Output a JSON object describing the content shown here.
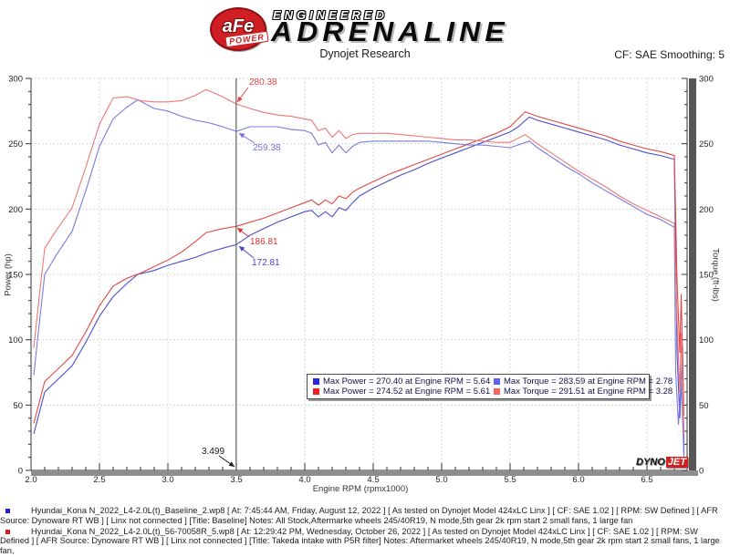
{
  "header": {
    "brand": {
      "badge_text": "aFe",
      "badge_sub": "POWER",
      "line1": "ENGINEERED",
      "line2": "ADRENALINE"
    },
    "title": "Dynojet Research",
    "smoothing": "CF: SAE Smoothing: 5"
  },
  "watermark": {
    "dyno": "DYNO",
    "jet": "JET"
  },
  "chart_data": {
    "type": "line",
    "xlabel": "Engine RPM (rpmx1000)",
    "ylabel_left": "Power (hp)",
    "ylabel_right": "Torque (ft-lbs)",
    "xlim": [
      2.0,
      6.79
    ],
    "ylim_left": [
      0,
      300
    ],
    "ylim_right": [
      0,
      300
    ],
    "grid": "dashed",
    "x_tick_labels": [
      "2.0",
      "2.5",
      "3.0",
      "3.5",
      "4.0",
      "4.5",
      "5.0",
      "5.5",
      "6.0",
      "6.5"
    ],
    "y_tick_labels": [
      "0",
      "50",
      "100",
      "150",
      "200",
      "250",
      "300"
    ],
    "cursor": {
      "rpm": 3.499,
      "label": "3.499"
    },
    "legend": {
      "entries": [
        {
          "color": "#2828e0",
          "label": "Max Power = 270.40 at Engine RPM = 5.64"
        },
        {
          "color": "#6060f0",
          "label": "Max Torque = 283.59 at Engine RPM = 2.78"
        },
        {
          "color": "#ee2222",
          "label": "Max Power = 274.52 at Engine RPM = 5.61"
        },
        {
          "color": "#f66262",
          "label": "Max Torque = 291.51 at Engine RPM = 3.28"
        }
      ]
    },
    "annotations": [
      {
        "text": "280.38",
        "color": "#e04545",
        "label_x": 273,
        "label_y": 85,
        "arrow": [
          272,
          96,
          260,
          112
        ]
      },
      {
        "text": "259.38",
        "color": "#7373e0",
        "label_x": 277,
        "label_y": 157,
        "arrow": [
          279,
          157,
          262,
          146
        ]
      },
      {
        "text": "186.81",
        "color": "#d83535",
        "label_x": 274,
        "label_y": 260,
        "arrow": [
          273,
          260,
          260,
          250
        ]
      },
      {
        "text": "172.81",
        "color": "#4545d0",
        "label_x": 276,
        "label_y": 283,
        "arrow": [
          278,
          283,
          262,
          270
        ]
      },
      {
        "text": "3.499",
        "color": "#1a1a1a",
        "label_x": 221,
        "label_y": 490,
        "arrow": [
          240,
          500,
          257,
          512
        ]
      }
    ],
    "series": [
      {
        "name": "power_run1_baseline",
        "unit": "hp",
        "color": "#4d4dcc",
        "points": [
          [
            2.02,
            28
          ],
          [
            2.06,
            44
          ],
          [
            2.1,
            60
          ],
          [
            2.18,
            68
          ],
          [
            2.3,
            80
          ],
          [
            2.4,
            98
          ],
          [
            2.5,
            118
          ],
          [
            2.6,
            133
          ],
          [
            2.7,
            143
          ],
          [
            2.78,
            150
          ],
          [
            2.9,
            153
          ],
          [
            3.0,
            157
          ],
          [
            3.1,
            160
          ],
          [
            3.2,
            163
          ],
          [
            3.3,
            167
          ],
          [
            3.4,
            170
          ],
          [
            3.5,
            172.8
          ],
          [
            3.6,
            180
          ],
          [
            3.7,
            185
          ],
          [
            3.8,
            190
          ],
          [
            3.9,
            194
          ],
          [
            4.0,
            198
          ],
          [
            4.05,
            199
          ],
          [
            4.1,
            194
          ],
          [
            4.15,
            198
          ],
          [
            4.2,
            194
          ],
          [
            4.25,
            201
          ],
          [
            4.3,
            199
          ],
          [
            4.35,
            205
          ],
          [
            4.4,
            210
          ],
          [
            4.5,
            216
          ],
          [
            4.6,
            221
          ],
          [
            4.7,
            226
          ],
          [
            4.8,
            230
          ],
          [
            4.9,
            235
          ],
          [
            5.0,
            239
          ],
          [
            5.1,
            243
          ],
          [
            5.2,
            247
          ],
          [
            5.3,
            251
          ],
          [
            5.4,
            255
          ],
          [
            5.5,
            259
          ],
          [
            5.56,
            263
          ],
          [
            5.64,
            270.4
          ],
          [
            5.7,
            268
          ],
          [
            5.8,
            265
          ],
          [
            5.9,
            262
          ],
          [
            6.0,
            259
          ],
          [
            6.1,
            256
          ],
          [
            6.2,
            253
          ],
          [
            6.3,
            249
          ],
          [
            6.4,
            246
          ],
          [
            6.5,
            243
          ],
          [
            6.6,
            241
          ],
          [
            6.7,
            238
          ],
          [
            6.72,
            90
          ],
          [
            6.74,
            40
          ],
          [
            6.76,
            95
          ],
          [
            6.77,
            12
          ]
        ]
      },
      {
        "name": "power_run2_intake",
        "unit": "hp",
        "color": "#e04848",
        "points": [
          [
            2.02,
            36
          ],
          [
            2.06,
            52
          ],
          [
            2.1,
            68
          ],
          [
            2.18,
            76
          ],
          [
            2.3,
            88
          ],
          [
            2.4,
            106
          ],
          [
            2.5,
            126
          ],
          [
            2.6,
            141
          ],
          [
            2.7,
            147
          ],
          [
            2.8,
            151
          ],
          [
            2.9,
            156
          ],
          [
            3.0,
            161
          ],
          [
            3.1,
            167
          ],
          [
            3.2,
            175
          ],
          [
            3.28,
            182
          ],
          [
            3.4,
            185
          ],
          [
            3.5,
            186.8
          ],
          [
            3.6,
            190
          ],
          [
            3.7,
            193
          ],
          [
            3.8,
            197
          ],
          [
            3.9,
            201
          ],
          [
            4.0,
            205
          ],
          [
            4.05,
            207
          ],
          [
            4.1,
            203
          ],
          [
            4.15,
            207
          ],
          [
            4.2,
            204
          ],
          [
            4.25,
            210
          ],
          [
            4.3,
            208
          ],
          [
            4.35,
            213
          ],
          [
            4.4,
            216
          ],
          [
            4.5,
            221
          ],
          [
            4.6,
            226
          ],
          [
            4.7,
            230
          ],
          [
            4.8,
            234
          ],
          [
            4.9,
            238
          ],
          [
            5.0,
            242
          ],
          [
            5.1,
            246
          ],
          [
            5.2,
            250
          ],
          [
            5.3,
            254
          ],
          [
            5.4,
            258
          ],
          [
            5.5,
            263
          ],
          [
            5.61,
            274.5
          ],
          [
            5.7,
            271
          ],
          [
            5.8,
            268
          ],
          [
            5.9,
            265
          ],
          [
            6.0,
            262
          ],
          [
            6.1,
            259
          ],
          [
            6.2,
            256
          ],
          [
            6.3,
            252
          ],
          [
            6.4,
            249
          ],
          [
            6.5,
            246
          ],
          [
            6.6,
            244
          ],
          [
            6.7,
            241
          ],
          [
            6.72,
            145
          ],
          [
            6.74,
            90
          ],
          [
            6.75,
            135
          ],
          [
            6.77,
            42
          ]
        ]
      },
      {
        "name": "torque_run1_baseline",
        "unit": "ft-lbs",
        "color": "#7b7bdd",
        "points": [
          [
            2.02,
            72.8
          ],
          [
            2.06,
            112
          ],
          [
            2.1,
            150
          ],
          [
            2.18,
            164
          ],
          [
            2.3,
            183
          ],
          [
            2.4,
            214
          ],
          [
            2.5,
            248
          ],
          [
            2.6,
            269
          ],
          [
            2.7,
            278
          ],
          [
            2.78,
            283.6
          ],
          [
            2.9,
            277
          ],
          [
            3.0,
            275
          ],
          [
            3.1,
            271
          ],
          [
            3.2,
            268
          ],
          [
            3.3,
            266
          ],
          [
            3.4,
            263
          ],
          [
            3.5,
            259.4
          ],
          [
            3.6,
            263
          ],
          [
            3.7,
            263
          ],
          [
            3.8,
            263
          ],
          [
            3.9,
            261
          ],
          [
            4.0,
            260
          ],
          [
            4.05,
            258
          ],
          [
            4.1,
            249
          ],
          [
            4.15,
            251
          ],
          [
            4.2,
            243
          ],
          [
            4.25,
            249
          ],
          [
            4.3,
            243
          ],
          [
            4.35,
            248
          ],
          [
            4.4,
            251
          ],
          [
            4.5,
            252
          ],
          [
            4.6,
            252
          ],
          [
            4.7,
            252
          ],
          [
            4.8,
            252
          ],
          [
            4.9,
            252
          ],
          [
            5.0,
            251
          ],
          [
            5.1,
            250
          ],
          [
            5.2,
            249
          ],
          [
            5.3,
            249
          ],
          [
            5.4,
            248
          ],
          [
            5.5,
            247
          ],
          [
            5.64,
            252
          ],
          [
            5.7,
            247
          ],
          [
            5.8,
            240
          ],
          [
            5.9,
            233
          ],
          [
            6.0,
            227
          ],
          [
            6.1,
            220
          ],
          [
            6.2,
            214
          ],
          [
            6.3,
            208
          ],
          [
            6.4,
            202
          ],
          [
            6.5,
            196
          ],
          [
            6.6,
            192
          ],
          [
            6.7,
            186
          ],
          [
            6.71,
            75
          ],
          [
            6.73,
            35
          ],
          [
            6.75,
            70
          ],
          [
            6.77,
            10
          ]
        ]
      },
      {
        "name": "torque_run2_intake",
        "unit": "ft-lbs",
        "color": "#ee7777",
        "points": [
          [
            2.02,
            93.6
          ],
          [
            2.06,
            133
          ],
          [
            2.1,
            170
          ],
          [
            2.18,
            183
          ],
          [
            2.3,
            201
          ],
          [
            2.4,
            232
          ],
          [
            2.5,
            265
          ],
          [
            2.6,
            285
          ],
          [
            2.7,
            286
          ],
          [
            2.8,
            283
          ],
          [
            2.9,
            282
          ],
          [
            3.0,
            282
          ],
          [
            3.1,
            283
          ],
          [
            3.2,
            287
          ],
          [
            3.28,
            291.5
          ],
          [
            3.4,
            286
          ],
          [
            3.5,
            280.4
          ],
          [
            3.6,
            277
          ],
          [
            3.7,
            274
          ],
          [
            3.8,
            272
          ],
          [
            3.9,
            271
          ],
          [
            4.0,
            269
          ],
          [
            4.05,
            268
          ],
          [
            4.1,
            260
          ],
          [
            4.15,
            262
          ],
          [
            4.2,
            255
          ],
          [
            4.25,
            260
          ],
          [
            4.3,
            254
          ],
          [
            4.35,
            257
          ],
          [
            4.4,
            258
          ],
          [
            4.5,
            258
          ],
          [
            4.6,
            258
          ],
          [
            4.7,
            257
          ],
          [
            4.8,
            256
          ],
          [
            4.9,
            255
          ],
          [
            5.0,
            254
          ],
          [
            5.1,
            253
          ],
          [
            5.2,
            253
          ],
          [
            5.3,
            252
          ],
          [
            5.4,
            251
          ],
          [
            5.5,
            251
          ],
          [
            5.61,
            257
          ],
          [
            5.7,
            250
          ],
          [
            5.8,
            243
          ],
          [
            5.9,
            236
          ],
          [
            6.0,
            229
          ],
          [
            6.1,
            223
          ],
          [
            6.2,
            217
          ],
          [
            6.3,
            210
          ],
          [
            6.4,
            204
          ],
          [
            6.5,
            199
          ],
          [
            6.6,
            194
          ],
          [
            6.7,
            189
          ],
          [
            6.72,
            115
          ],
          [
            6.74,
            60
          ],
          [
            6.75,
            105
          ],
          [
            6.77,
            28
          ]
        ]
      }
    ]
  },
  "footer": {
    "runs": [
      {
        "bullet_color": "#2222cc",
        "text": "Hyundai_Kona N_2022_L4-2.0L(t)_Baseline_2.wp8 [ At: 7:45:44 AM, Friday, August 12, 2022 ] [ As tested on Dynojet Model 424xLC Linx ] [ CF: SAE 1.02 ] [ RPM: SW Defined ] [ AFR Source: Dynoware RT WB ] [ Linx not connected ] [Title: Baseline]  Notes: All Stock,Aftermarke wheels 245/40R19, N mode,5th gear 2k rpm start 2 small fans, 1 large fan"
      },
      {
        "bullet_color": "#cc2222",
        "text": "Hyundai_Kona N_2022_L4-2.0L(t)_56-70058R_5.wp8 [ At: 12:29:42 PM, Wednesday, October 26, 2022 ] [ As tested on Dynojet Model 424xLC Linx ] [ CF: SAE 1.02 ] [ RPM: SW Defined ] [ AFR Source: Dynoware RT WB ] [ Linx not connected ] [Title: Takeda intake with P5R filter]  Notes: Aftermarket wheels 245/40R19, N mode,5th gear 2k rpm start 2 small fans, 1 large fan,"
      }
    ]
  }
}
